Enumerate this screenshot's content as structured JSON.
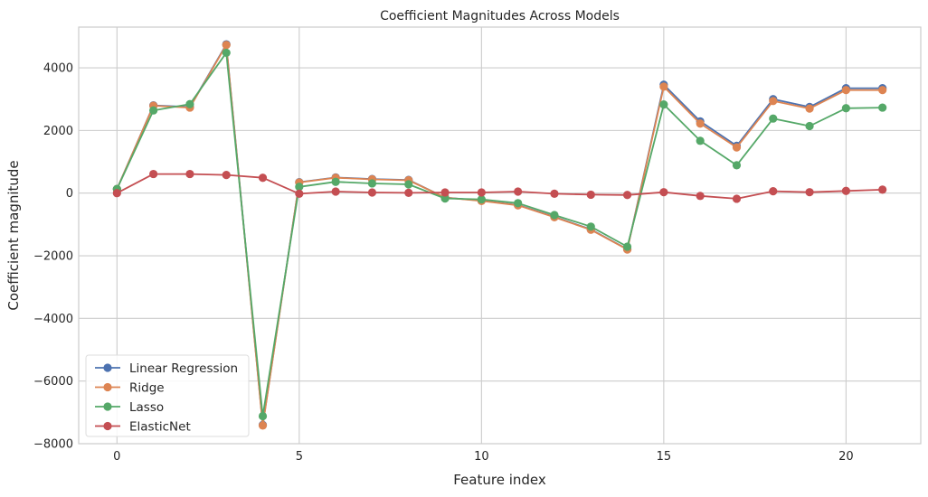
{
  "chart_data": {
    "type": "line",
    "title": "Coefficient Magnitudes Across Models",
    "xlabel": "Feature index",
    "ylabel": "Coefficient magnitude",
    "xlim": [
      -1.05,
      22.05
    ],
    "ylim": [
      -8000,
      5300
    ],
    "xticks": [
      0,
      5,
      10,
      15,
      20
    ],
    "yticks": [
      -8000,
      -6000,
      -4000,
      -2000,
      0,
      2000,
      4000
    ],
    "grid": true,
    "legend_position": "lower-left",
    "x": [
      0,
      1,
      2,
      3,
      4,
      5,
      6,
      7,
      8,
      9,
      10,
      11,
      12,
      13,
      14,
      15,
      16,
      17,
      18,
      19,
      20,
      21
    ],
    "series": [
      {
        "name": "Linear Regression",
        "color": "#4c72b0",
        "values": [
          130,
          2800,
          2750,
          4750,
          -7400,
          350,
          500,
          450,
          420,
          -140,
          -240,
          -380,
          -760,
          -1160,
          -1790,
          3460,
          2290,
          1510,
          3000,
          2750,
          3350,
          3350
        ]
      },
      {
        "name": "Ridge",
        "color": "#dd8452",
        "values": [
          130,
          2790,
          2730,
          4730,
          -7420,
          340,
          490,
          440,
          410,
          -140,
          -250,
          -390,
          -770,
          -1170,
          -1800,
          3400,
          2220,
          1460,
          2940,
          2700,
          3290,
          3290
        ]
      },
      {
        "name": "Lasso",
        "color": "#55a868",
        "values": [
          130,
          2640,
          2840,
          4480,
          -7120,
          200,
          360,
          310,
          280,
          -170,
          -200,
          -320,
          -700,
          -1070,
          -1710,
          2830,
          1670,
          890,
          2380,
          2140,
          2710,
          2730
        ]
      },
      {
        "name": "ElasticNet",
        "color": "#c44e52",
        "values": [
          0,
          610,
          610,
          580,
          490,
          -20,
          50,
          20,
          10,
          20,
          20,
          50,
          -20,
          -50,
          -60,
          30,
          -90,
          -180,
          60,
          30,
          70,
          110
        ]
      }
    ]
  }
}
